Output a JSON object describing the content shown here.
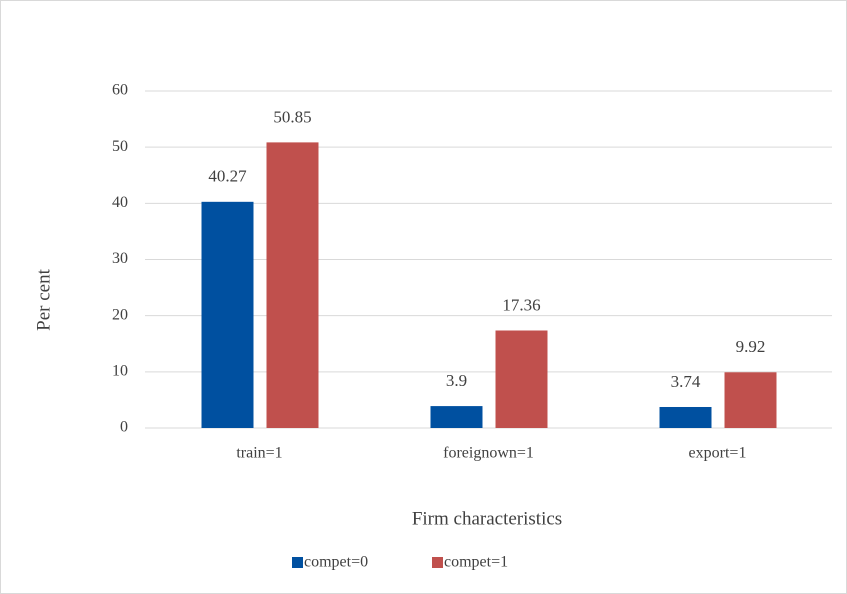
{
  "chart_data": {
    "type": "bar",
    "categories": [
      "train=1",
      "foreignown=1",
      "export=1"
    ],
    "series": [
      {
        "name": "compet=0",
        "color": "#0050a0",
        "values": [
          40.27,
          3.9,
          3.74
        ]
      },
      {
        "name": "compet=1",
        "color": "#c0504d",
        "values": [
          50.85,
          17.36,
          9.92
        ]
      }
    ],
    "x_label": "Firm characteristics",
    "y_label": "Per cent",
    "ylim": [
      0,
      60
    ],
    "yticks": [
      0,
      10,
      20,
      30,
      40,
      50,
      60
    ],
    "grid": true,
    "legend": "bottom"
  }
}
